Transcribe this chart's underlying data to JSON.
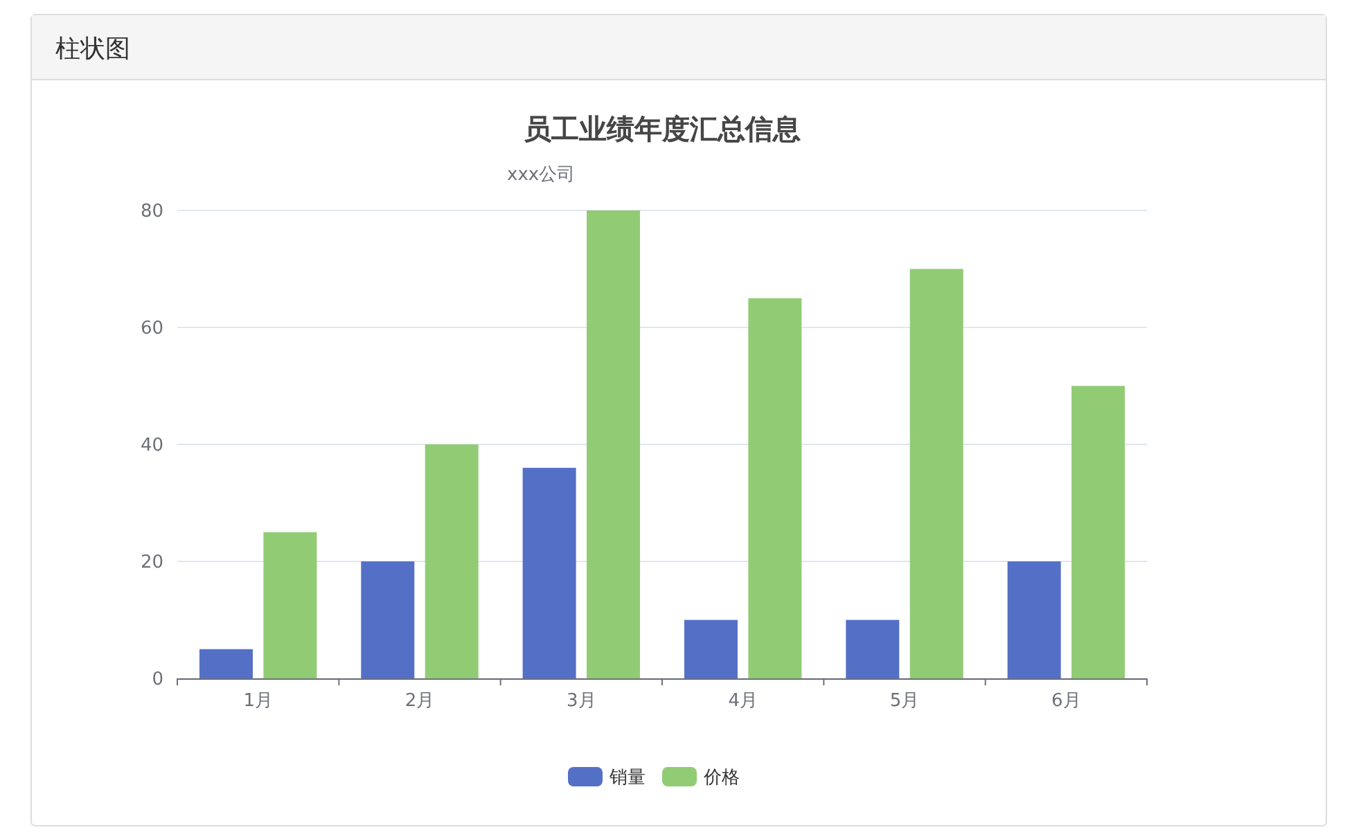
{
  "chart_data": {
    "type": "bar",
    "title": "员工业绩年度汇总信息",
    "subtitle": "xxx公司",
    "annotations": [
      "柱状图"
    ],
    "categories": [
      "1月",
      "2月",
      "3月",
      "4月",
      "5月",
      "6月"
    ],
    "series": [
      {
        "name": "销量",
        "color": "#5470c6",
        "values": [
          5,
          20,
          36,
          10,
          10,
          20
        ]
      },
      {
        "name": "价格",
        "color": "#91cc75",
        "values": [
          25,
          40,
          80,
          65,
          70,
          50
        ]
      }
    ],
    "ylim": [
      0,
      80
    ],
    "yticks": [
      0,
      20,
      40,
      60,
      80
    ],
    "grid": "y",
    "legend": "bottom"
  }
}
